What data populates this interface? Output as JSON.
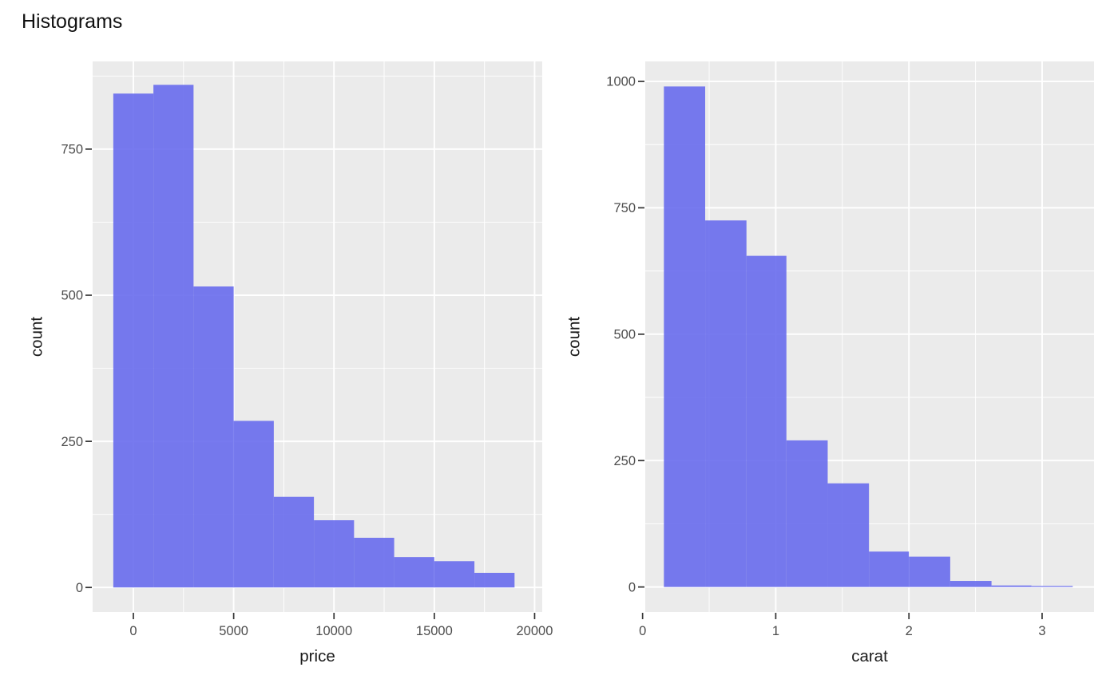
{
  "page": {
    "title": "Histograms"
  },
  "style": {
    "background": "#ffffff",
    "panel_bg": "#ebebeb",
    "grid_color": "#ffffff",
    "bar_fill": "#6468ed",
    "bar_opacity": 0.88,
    "tick_mark_color": "#333333",
    "tick_label_color": "#4d4d4d",
    "title_color": "#111111"
  },
  "chart_data": [
    {
      "type": "bar",
      "variant": "histogram",
      "name": "price-histogram",
      "xlabel": "price",
      "ylabel": "count",
      "bin_edges": [
        -1000,
        1000,
        3000,
        5000,
        7000,
        9000,
        11000,
        13000,
        15000,
        17000,
        19000
      ],
      "counts": [
        845,
        860,
        515,
        285,
        155,
        115,
        85,
        52,
        45,
        25
      ],
      "x_ticks": [
        0,
        5000,
        10000,
        15000,
        20000
      ],
      "x_tick_labels": [
        "0",
        "5000",
        "10000",
        "15000",
        "20000"
      ],
      "x_minor_ticks": [
        2500,
        7500,
        12500,
        17500
      ],
      "y_ticks": [
        0,
        250,
        500,
        750
      ],
      "y_tick_labels": [
        "0",
        "250",
        "500",
        "750"
      ],
      "y_minor_ticks": [
        125,
        375,
        625,
        875
      ],
      "x_domain": [
        -2030,
        20380
      ],
      "y_domain": [
        -42,
        900
      ],
      "grid": true,
      "legend": "none"
    },
    {
      "type": "bar",
      "variant": "histogram",
      "name": "carat-histogram",
      "xlabel": "carat",
      "ylabel": "count",
      "bin_edges": [
        0.16,
        0.47,
        0.78,
        1.08,
        1.39,
        1.7,
        2.0,
        2.31,
        2.62,
        2.92,
        3.23
      ],
      "counts": [
        990,
        725,
        655,
        290,
        205,
        70,
        60,
        12,
        3,
        2
      ],
      "x_ticks": [
        0,
        1,
        2,
        3
      ],
      "x_tick_labels": [
        "0",
        "1",
        "2",
        "3"
      ],
      "x_minor_ticks": [
        0.5,
        1.5,
        2.5
      ],
      "y_ticks": [
        0,
        250,
        500,
        750,
        1000
      ],
      "y_tick_labels": [
        "0",
        "250",
        "500",
        "750",
        "1000"
      ],
      "y_minor_ticks": [
        125,
        375,
        625,
        875
      ],
      "x_domain": [
        0.02,
        3.39
      ],
      "y_domain": [
        -49.5,
        1039.5
      ],
      "grid": true,
      "legend": "none"
    }
  ]
}
